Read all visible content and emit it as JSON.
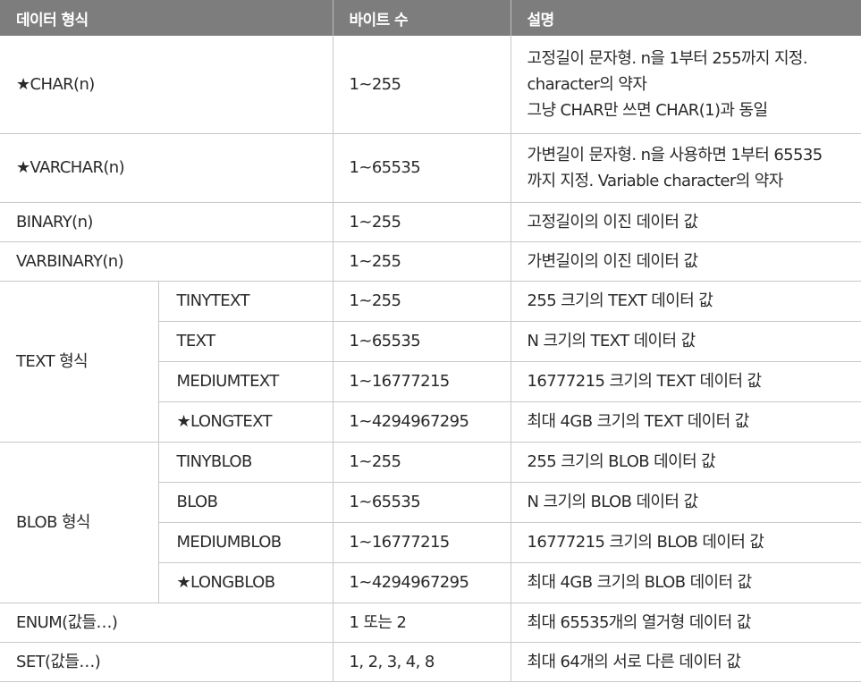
{
  "header": {
    "col_type": "데이터 형식",
    "col_bytes": "바이트 수",
    "col_desc": "설명"
  },
  "rows": {
    "char": {
      "type": "★CHAR(n)",
      "bytes": "1~255",
      "desc": [
        "고정길이 문자형. n을 1부터 255까지 지정.",
        "character의 약자",
        "그냥 CHAR만 쓰면 CHAR(1)과 동일"
      ]
    },
    "varchar": {
      "type": "★VARCHAR(n)",
      "bytes": "1~65535",
      "desc": [
        "가변길이 문자형. n을 사용하면 1부터 65535",
        "까지 지정. Variable character의 약자"
      ]
    },
    "binary": {
      "type": "BINARY(n)",
      "bytes": "1~255",
      "desc": "고정길이의 이진 데이터 값"
    },
    "varbinary": {
      "type": "VARBINARY(n)",
      "bytes": "1~255",
      "desc": "가변길이의 이진 데이터 값"
    },
    "text_group": {
      "label": "TEXT 형식",
      "items": [
        {
          "type": "TINYTEXT",
          "bytes": "1~255",
          "desc": "255 크기의 TEXT 데이터 값"
        },
        {
          "type": "TEXT",
          "bytes": "1~65535",
          "desc": "N 크기의 TEXT 데이터 값"
        },
        {
          "type": "MEDIUMTEXT",
          "bytes": "1~16777215",
          "desc": "16777215 크기의 TEXT 데이터 값"
        },
        {
          "type": "★LONGTEXT",
          "bytes": "1~4294967295",
          "desc": "최대 4GB 크기의 TEXT 데이터 값"
        }
      ]
    },
    "blob_group": {
      "label": "BLOB 형식",
      "items": [
        {
          "type": "TINYBLOB",
          "bytes": "1~255",
          "desc": "255 크기의 BLOB 데이터 값"
        },
        {
          "type": "BLOB",
          "bytes": "1~65535",
          "desc": "N 크기의 BLOB 데이터 값"
        },
        {
          "type": "MEDIUMBLOB",
          "bytes": "1~16777215",
          "desc": "16777215 크기의 BLOB 데이터 값"
        },
        {
          "type": "★LONGBLOB",
          "bytes": "1~4294967295",
          "desc": "최대 4GB 크기의 BLOB 데이터 값"
        }
      ]
    },
    "enum": {
      "type": "ENUM(값들…)",
      "bytes": "1 또는 2",
      "desc": "최대 65535개의 열거형 데이터 값"
    },
    "set": {
      "type": "SET(값들…)",
      "bytes": "1, 2, 3, 4, 8",
      "desc": "최대 64개의 서로 다른 데이터 값"
    }
  },
  "colors": {
    "header_bg": "#7d7d7d",
    "header_text": "#ffffff",
    "grid": "#c8c8c8"
  }
}
